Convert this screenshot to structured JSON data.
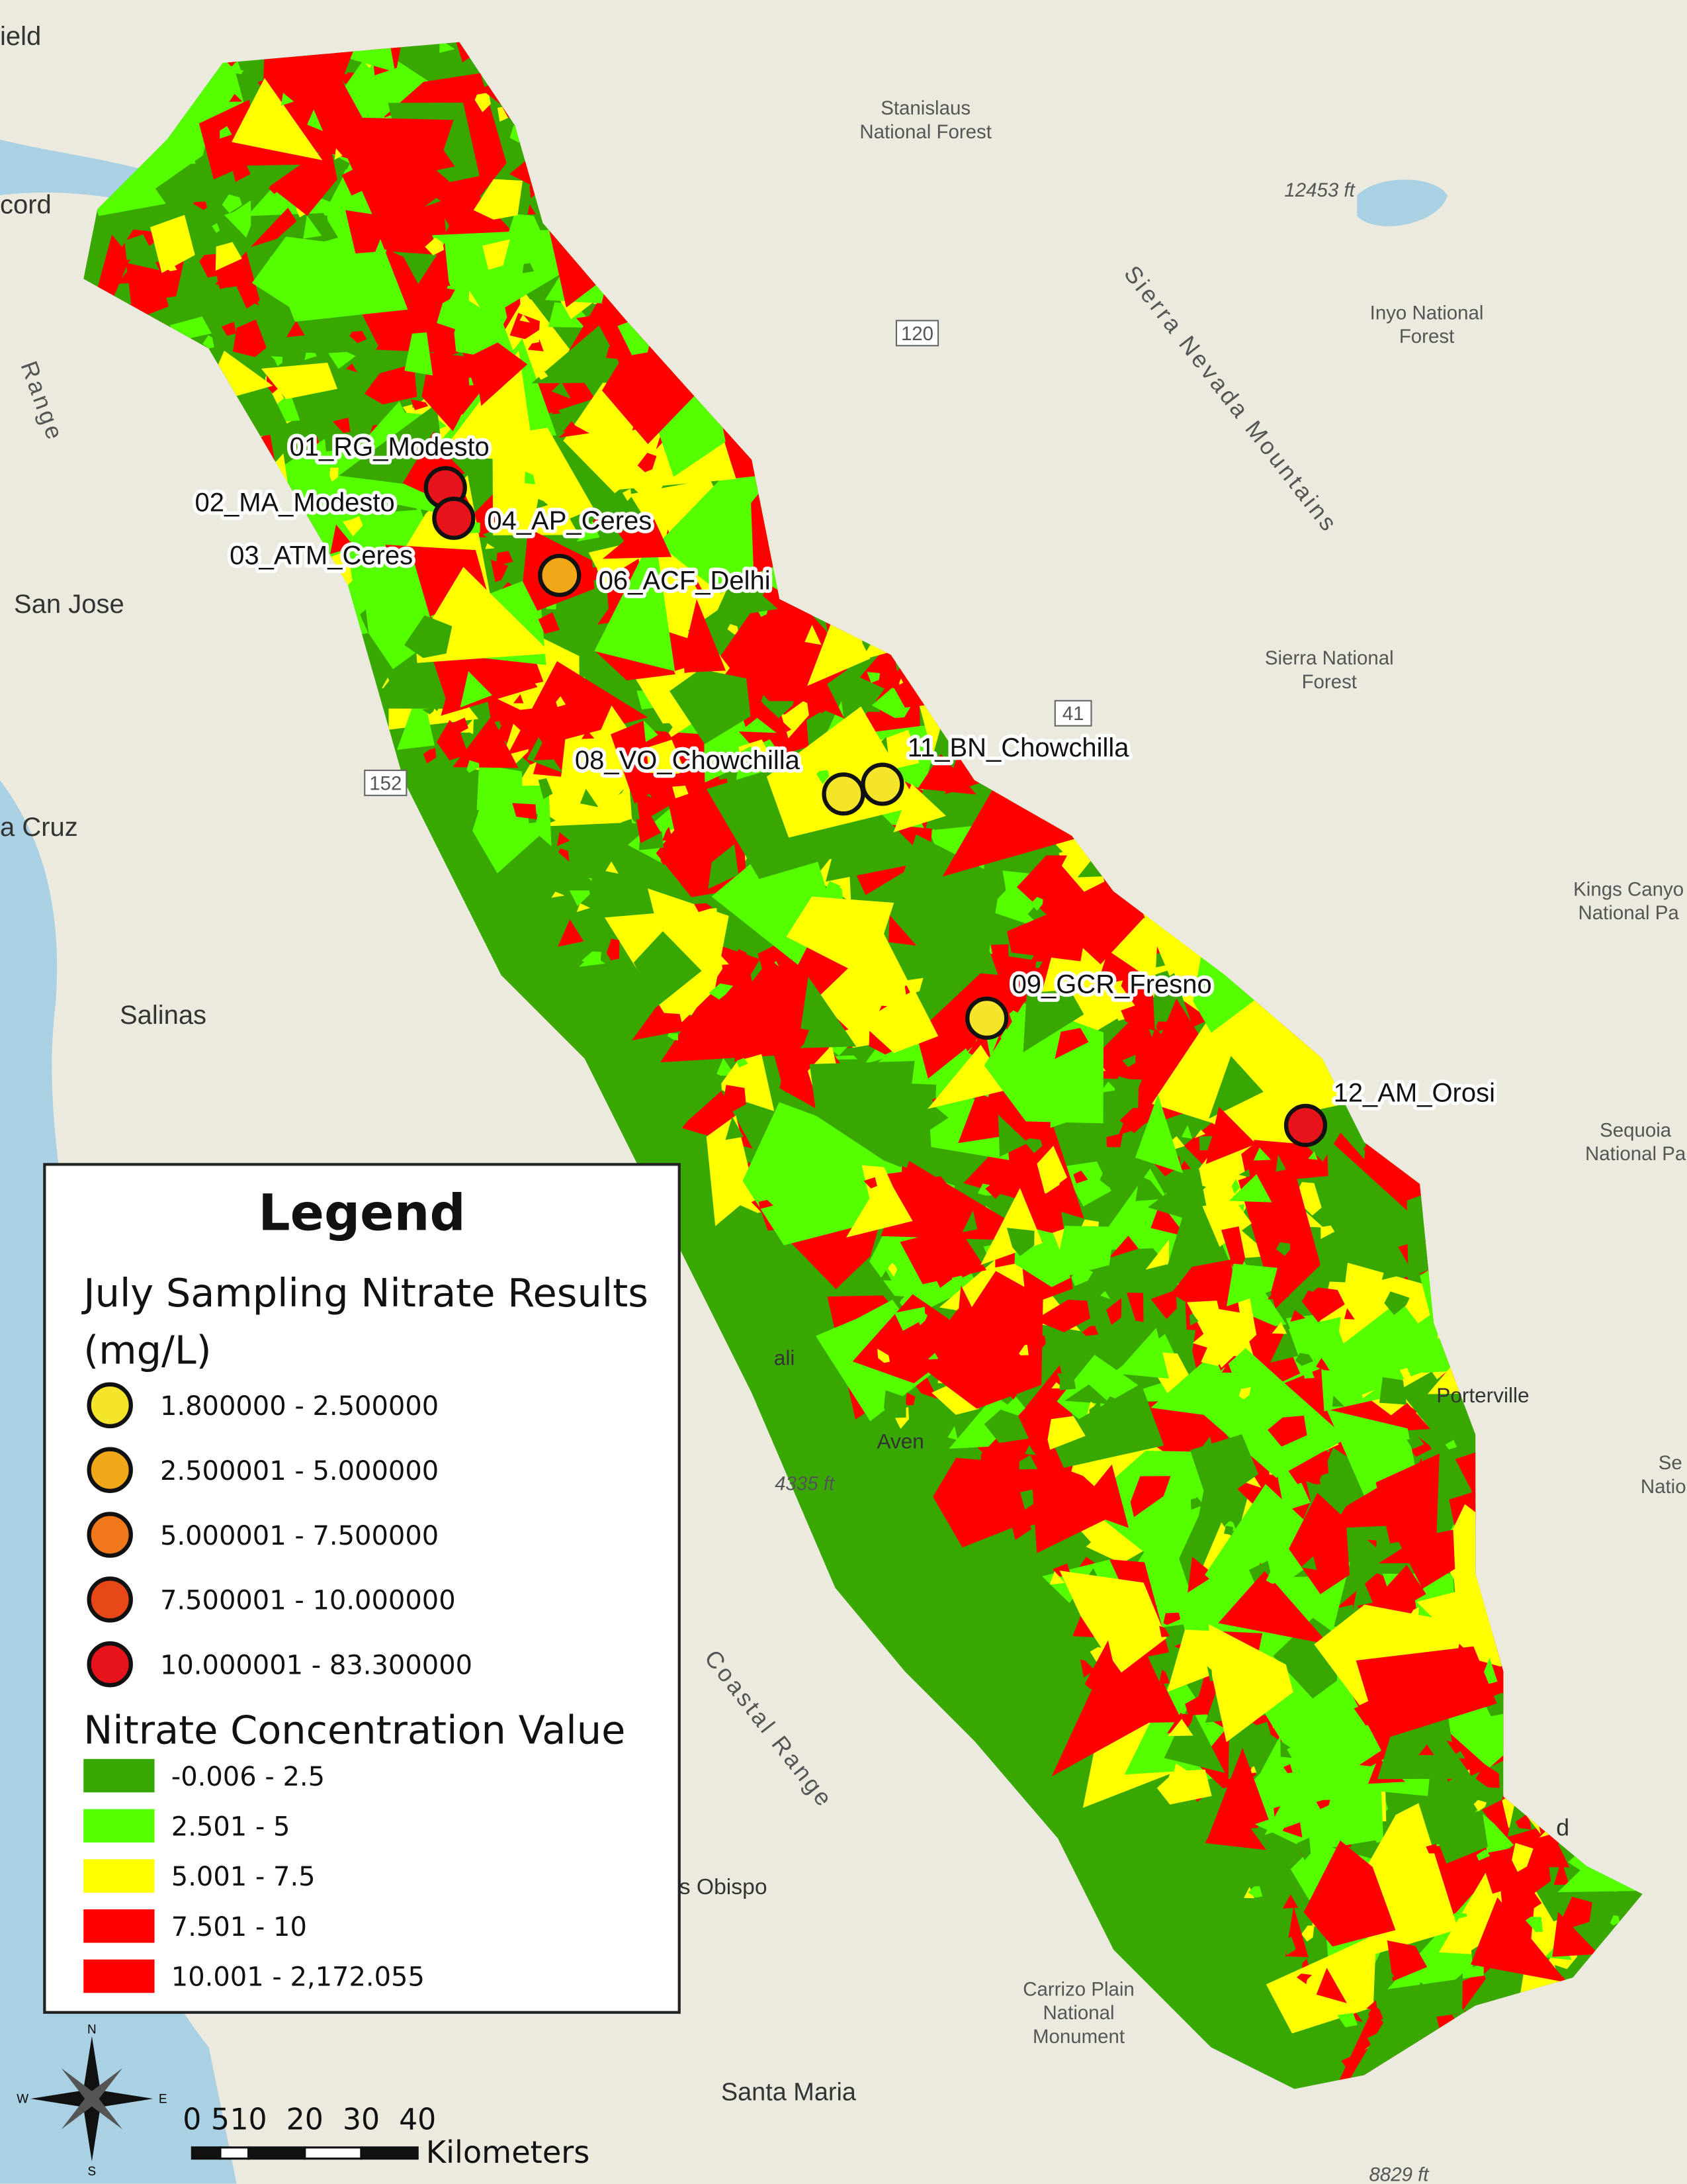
{
  "places": {
    "cities": [
      "ield",
      "cord",
      "San Jose",
      "a Cruz",
      "Salinas",
      "Porterville",
      "Aven",
      "s Obispo",
      "Santa Maria",
      "ali",
      "d"
    ],
    "areas": [
      [
        "Stanislaus",
        "National Forest"
      ],
      [
        "Inyo National",
        "Forest"
      ],
      [
        "Sierra National",
        "Forest"
      ],
      [
        "Kings Canyo",
        "National Pa"
      ],
      [
        "Sequoia",
        "National Pa"
      ],
      [
        "Se",
        "Natio"
      ],
      [
        "Carrizo Plain",
        "National",
        "Monument"
      ]
    ],
    "elevations": [
      "12453 ft",
      "4335 ft",
      "8829 ft"
    ],
    "roads": [
      "120",
      "41",
      "152"
    ],
    "ranges": [
      "Sierra Nevada Mountains",
      "Coastal Range",
      "Range"
    ]
  },
  "sites": [
    "01_RG_Modesto",
    "02_MA_Modesto",
    "03_ATM_Ceres",
    "04_AP_Ceres",
    "06_ACF_Delhi",
    "08_VO_Chowchilla",
    "11_BN_Chowchilla",
    "09_GCR_Fresno",
    "12_AM_Orosi"
  ],
  "legend": {
    "title": "Legend",
    "sampling_title": [
      "July Sampling Nitrate Results",
      "(mg/L)"
    ],
    "sampling_classes": [
      "1.800000 - 2.500000",
      "2.500001 - 5.000000",
      "5.000001 - 7.500000",
      "7.500001 - 10.000000",
      "10.000001 - 83.300000"
    ],
    "concentration_title": "Nitrate Concentration Value",
    "concentration_classes": [
      "-0.006 - 2.5",
      "2.501 - 5",
      "5.001 - 7.5",
      "7.501 - 10",
      "10.001 - 2,172.055"
    ]
  },
  "scale_bar": {
    "ticks": [
      0,
      5,
      10,
      20,
      30,
      40
    ],
    "unit": "Kilometers"
  },
  "compass": [
    "N",
    "S",
    "E",
    "W"
  ]
}
